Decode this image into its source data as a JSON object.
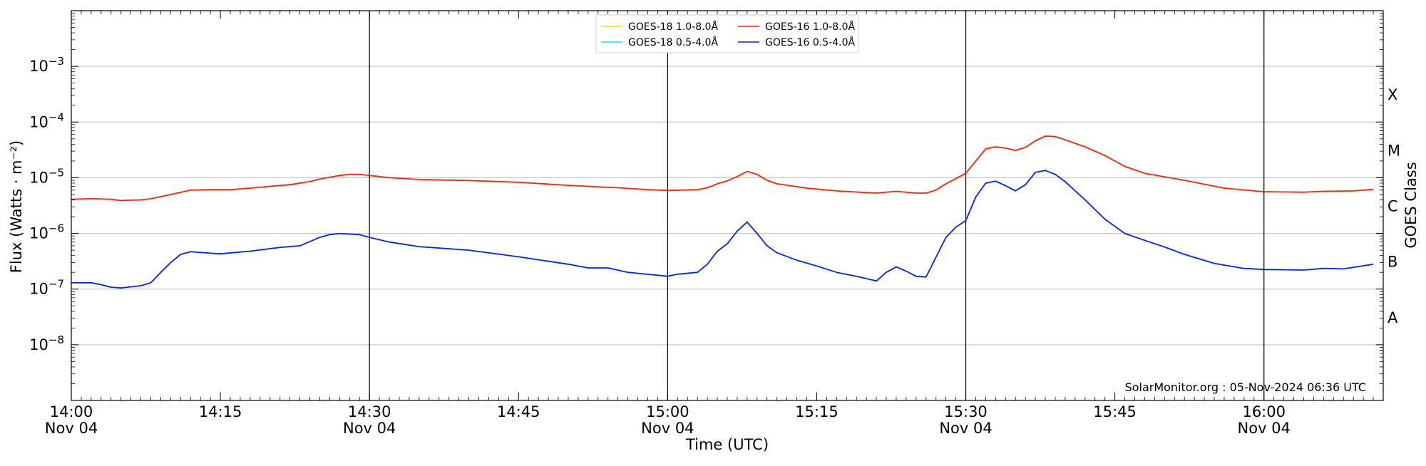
{
  "chart_data": {
    "type": "line",
    "title": "",
    "xlabel": "Time (UTC)",
    "ylabel": "Flux (Watts · m⁻²)",
    "y2label": "GOES Class",
    "yscale": "log",
    "xlim": [
      "2024-11-04 14:00",
      "2024-11-04 16:12"
    ],
    "ylim": [
      1e-09,
      0.01
    ],
    "x_ticks": [
      "14:00",
      "14:15",
      "14:30",
      "14:45",
      "15:00",
      "15:15",
      "15:30",
      "15:45",
      "16:00"
    ],
    "x_tick_labels": [
      {
        "time": "14:00",
        "date": "Nov 04"
      },
      {
        "time": "14:15",
        "date": ""
      },
      {
        "time": "14:30",
        "date": "Nov 04"
      },
      {
        "time": "14:45",
        "date": ""
      },
      {
        "time": "15:00",
        "date": "Nov 04"
      },
      {
        "time": "15:15",
        "date": ""
      },
      {
        "time": "15:30",
        "date": "Nov 04"
      },
      {
        "time": "15:45",
        "date": ""
      },
      {
        "time": "16:00",
        "date": "Nov 04"
      }
    ],
    "y_ticks": [
      {
        "value": 1e-08,
        "base": "10",
        "exp": "−8"
      },
      {
        "value": 1e-07,
        "base": "10",
        "exp": "−7"
      },
      {
        "value": 1e-06,
        "base": "10",
        "exp": "−6"
      },
      {
        "value": 1e-05,
        "base": "10",
        "exp": "−5"
      },
      {
        "value": 0.0001,
        "base": "10",
        "exp": "−4"
      },
      {
        "value": 0.001,
        "base": "10",
        "exp": "−3"
      }
    ],
    "goes_classes": [
      {
        "label": "A",
        "value": 3.16e-08
      },
      {
        "label": "B",
        "value": 3.16e-07
      },
      {
        "label": "C",
        "value": 3.16e-06
      },
      {
        "label": "M",
        "value": 3.16e-05
      },
      {
        "label": "X",
        "value": 0.000316
      }
    ],
    "grid": "horizontal",
    "vertical_markers": [
      "14:30",
      "15:00",
      "15:30",
      "16:00"
    ],
    "legend": {
      "placement": "top-center",
      "entries": [
        {
          "label": "GOES-18 1.0-8.0Å",
          "color": "#ffd700"
        },
        {
          "label": "GOES-18 0.5-4.0Å",
          "color": "#00e5ff"
        },
        {
          "label": "GOES-16 1.0-8.0Å",
          "color": "#ff2200"
        },
        {
          "label": "GOES-16 0.5-4.0Å",
          "color": "#0022ff"
        }
      ]
    },
    "credit": "SolarMonitor.org : 05-Nov-2024 06:36 UTC",
    "series": [
      {
        "name": "GOES-16 1.0-8.0Å",
        "color": "#ff2200",
        "points": [
          [
            "14:00",
            4.1e-06
          ],
          [
            "14:02",
            4.2e-06
          ],
          [
            "14:04",
            4.1e-06
          ],
          [
            "14:05",
            3.9e-06
          ],
          [
            "14:07",
            4e-06
          ],
          [
            "14:08",
            4.2e-06
          ],
          [
            "14:10",
            5e-06
          ],
          [
            "14:12",
            6e-06
          ],
          [
            "14:14",
            6.1e-06
          ],
          [
            "14:16",
            6.1e-06
          ],
          [
            "14:18",
            6.5e-06
          ],
          [
            "14:20",
            7e-06
          ],
          [
            "14:22",
            7.5e-06
          ],
          [
            "14:24",
            8.5e-06
          ],
          [
            "14:25",
            9.5e-06
          ],
          [
            "14:27",
            1.1e-05
          ],
          [
            "14:28",
            1.15e-05
          ],
          [
            "14:29",
            1.15e-05
          ],
          [
            "14:30",
            1.1e-05
          ],
          [
            "14:32",
            1e-05
          ],
          [
            "14:35",
            9.3e-06
          ],
          [
            "14:40",
            8.9e-06
          ],
          [
            "14:45",
            8.3e-06
          ],
          [
            "14:50",
            7.3e-06
          ],
          [
            "14:55",
            6.6e-06
          ],
          [
            "14:58",
            6.1e-06
          ],
          [
            "15:00",
            5.9e-06
          ],
          [
            "15:03",
            6.1e-06
          ],
          [
            "15:04",
            6.6e-06
          ],
          [
            "15:05",
            7.8e-06
          ],
          [
            "15:06",
            8.8e-06
          ],
          [
            "15:07",
            1.05e-05
          ],
          [
            "15:08",
            1.3e-05
          ],
          [
            "15:09",
            1.15e-05
          ],
          [
            "15:10",
            9e-06
          ],
          [
            "15:11",
            7.8e-06
          ],
          [
            "15:14",
            6.5e-06
          ],
          [
            "15:17",
            5.8e-06
          ],
          [
            "15:20",
            5.4e-06
          ],
          [
            "15:21",
            5.3e-06
          ],
          [
            "15:23",
            5.7e-06
          ],
          [
            "15:25",
            5.3e-06
          ],
          [
            "15:26",
            5.3e-06
          ],
          [
            "15:27",
            6e-06
          ],
          [
            "15:28",
            7.8e-06
          ],
          [
            "15:30",
            1.2e-05
          ],
          [
            "15:31",
            2e-05
          ],
          [
            "15:32",
            3.3e-05
          ],
          [
            "15:33",
            3.6e-05
          ],
          [
            "15:34",
            3.4e-05
          ],
          [
            "15:35",
            3.1e-05
          ],
          [
            "15:36",
            3.5e-05
          ],
          [
            "15:37",
            4.6e-05
          ],
          [
            "15:38",
            5.6e-05
          ],
          [
            "15:39",
            5.5e-05
          ],
          [
            "15:40",
            4.8e-05
          ],
          [
            "15:42",
            3.6e-05
          ],
          [
            "15:44",
            2.5e-05
          ],
          [
            "15:46",
            1.6e-05
          ],
          [
            "15:48",
            1.2e-05
          ],
          [
            "15:52",
            9e-06
          ],
          [
            "15:56",
            6.5e-06
          ],
          [
            "16:00",
            5.6e-06
          ],
          [
            "16:04",
            5.5e-06
          ],
          [
            "16:06",
            5.7e-06
          ],
          [
            "16:09",
            5.8e-06
          ],
          [
            "16:11",
            6.2e-06
          ]
        ]
      },
      {
        "name": "GOES-16 0.5-4.0Å",
        "color": "#0022ff",
        "points": [
          [
            "14:00",
            1.3e-07
          ],
          [
            "14:02",
            1.3e-07
          ],
          [
            "14:03",
            1.2e-07
          ],
          [
            "14:04",
            1.08e-07
          ],
          [
            "14:05",
            1.05e-07
          ],
          [
            "14:07",
            1.15e-07
          ],
          [
            "14:08",
            1.3e-07
          ],
          [
            "14:09",
            2e-07
          ],
          [
            "14:10",
            3e-07
          ],
          [
            "14:11",
            4.2e-07
          ],
          [
            "14:12",
            4.7e-07
          ],
          [
            "14:14",
            4.4e-07
          ],
          [
            "14:15",
            4.3e-07
          ],
          [
            "14:18",
            4.8e-07
          ],
          [
            "14:21",
            5.6e-07
          ],
          [
            "14:23",
            6e-07
          ],
          [
            "14:25",
            8.5e-07
          ],
          [
            "14:26",
            9.5e-07
          ],
          [
            "14:27",
            1e-06
          ],
          [
            "14:29",
            9.5e-07
          ],
          [
            "14:30",
            8.5e-07
          ],
          [
            "14:32",
            7e-07
          ],
          [
            "14:35",
            5.8e-07
          ],
          [
            "14:40",
            5e-07
          ],
          [
            "14:45",
            3.8e-07
          ],
          [
            "14:50",
            2.8e-07
          ],
          [
            "14:52",
            2.4e-07
          ],
          [
            "14:54",
            2.4e-07
          ],
          [
            "14:56",
            2e-07
          ],
          [
            "15:00",
            1.7e-07
          ],
          [
            "15:01",
            1.85e-07
          ],
          [
            "15:03",
            2e-07
          ],
          [
            "15:04",
            2.8e-07
          ],
          [
            "15:05",
            4.8e-07
          ],
          [
            "15:06",
            6.5e-07
          ],
          [
            "15:07",
            1.1e-06
          ],
          [
            "15:08",
            1.6e-06
          ],
          [
            "15:09",
            1e-06
          ],
          [
            "15:10",
            6e-07
          ],
          [
            "15:11",
            4.5e-07
          ],
          [
            "15:13",
            3.3e-07
          ],
          [
            "15:15",
            2.6e-07
          ],
          [
            "15:17",
            2e-07
          ],
          [
            "15:19",
            1.7e-07
          ],
          [
            "15:21",
            1.4e-07
          ],
          [
            "15:22",
            2e-07
          ],
          [
            "15:23",
            2.5e-07
          ],
          [
            "15:24",
            2.1e-07
          ],
          [
            "15:25",
            1.7e-07
          ],
          [
            "15:26",
            1.65e-07
          ],
          [
            "15:28",
            8.5e-07
          ],
          [
            "15:29",
            1.3e-06
          ],
          [
            "15:30",
            1.7e-06
          ],
          [
            "15:31",
            4.5e-06
          ],
          [
            "15:32",
            8e-06
          ],
          [
            "15:33",
            8.7e-06
          ],
          [
            "15:34",
            7.2e-06
          ],
          [
            "15:35",
            5.8e-06
          ],
          [
            "15:36",
            7.5e-06
          ],
          [
            "15:37",
            1.25e-05
          ],
          [
            "15:38",
            1.35e-05
          ],
          [
            "15:39",
            1.15e-05
          ],
          [
            "15:40",
            8.5e-06
          ],
          [
            "15:42",
            4e-06
          ],
          [
            "15:44",
            1.8e-06
          ],
          [
            "15:46",
            1e-06
          ],
          [
            "15:48",
            7.5e-07
          ],
          [
            "15:50",
            5.7e-07
          ],
          [
            "15:52",
            4.2e-07
          ],
          [
            "15:55",
            2.9e-07
          ],
          [
            "15:58",
            2.35e-07
          ],
          [
            "16:00",
            2.25e-07
          ],
          [
            "16:04",
            2.2e-07
          ],
          [
            "16:06",
            2.35e-07
          ],
          [
            "16:08",
            2.3e-07
          ],
          [
            "16:11",
            2.8e-07
          ]
        ]
      }
    ]
  }
}
